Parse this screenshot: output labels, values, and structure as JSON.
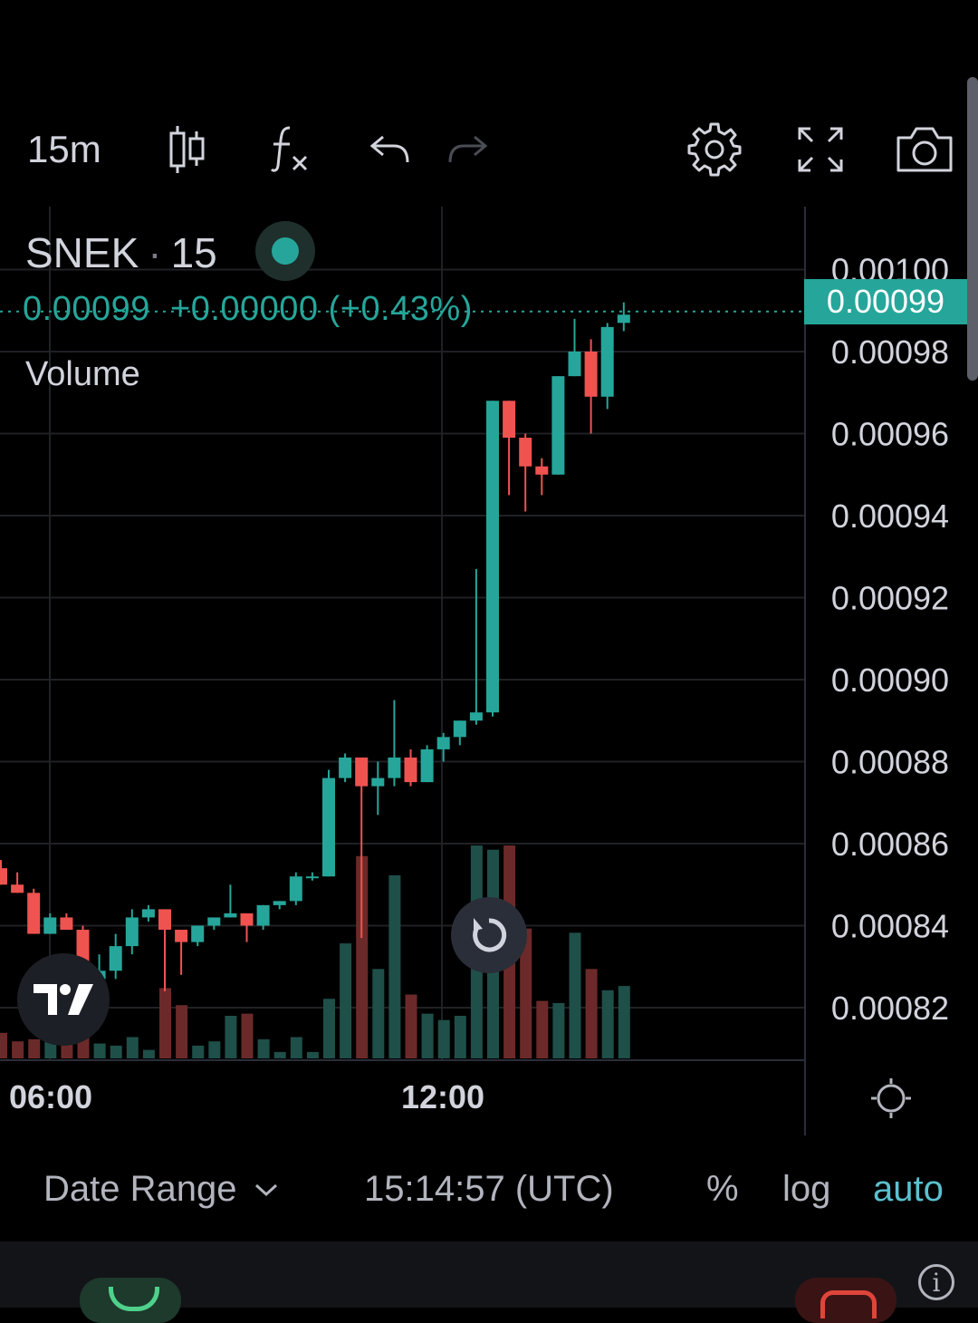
{
  "toolbar": {
    "interval": "15m",
    "icons": [
      "candles-icon",
      "indicators-icon",
      "undo-icon",
      "redo-icon",
      "settings-icon",
      "fullscreen-icon",
      "camera-icon"
    ]
  },
  "legend": {
    "symbol": "SNEK",
    "separator": "·",
    "interval": "15",
    "price": "0.00099",
    "change": "+0.00000",
    "change_pct": "(+0.43%)",
    "volume_label": "Volume"
  },
  "last_price_tag": "0.00099",
  "colors": {
    "up": "#26a69a",
    "down": "#ef5350",
    "accent": "#26a69a"
  },
  "time_axis": {
    "labels": [
      "06:00",
      "12:00"
    ]
  },
  "bottom_bar": {
    "date_range": "Date Range",
    "clock": "15:14:57 (UTC)",
    "percent": "%",
    "log": "log",
    "auto": "auto"
  },
  "chart_data": {
    "type": "candlestick",
    "ylim": [
      0.00081,
      0.00101
    ],
    "y_ticks": [
      "0.00100",
      "0.00098",
      "0.00096",
      "0.00094",
      "0.00092",
      "0.00090",
      "0.00088",
      "0.00086",
      "0.00084",
      "0.00082"
    ],
    "x_ticks": [
      "06:00",
      "12:00"
    ],
    "last_price": 0.00099,
    "candles": [
      {
        "o": 0.000854,
        "h": 0.000856,
        "l": 0.00085,
        "c": 0.00085,
        "v": 0.12
      },
      {
        "o": 0.00085,
        "h": 0.000853,
        "l": 0.000848,
        "c": 0.000848,
        "v": 0.08
      },
      {
        "o": 0.000848,
        "h": 0.000849,
        "l": 0.000838,
        "c": 0.000838,
        "v": 0.09
      },
      {
        "o": 0.000838,
        "h": 0.000843,
        "l": 0.000838,
        "c": 0.000842,
        "v": 0.1
      },
      {
        "o": 0.000842,
        "h": 0.000843,
        "l": 0.000839,
        "c": 0.000839,
        "v": 0.08
      },
      {
        "o": 0.000839,
        "h": 0.00084,
        "l": 0.000825,
        "c": 0.000827,
        "v": 0.17
      },
      {
        "o": 0.000827,
        "h": 0.000833,
        "l": 0.000826,
        "c": 0.000829,
        "v": 0.07
      },
      {
        "o": 0.000829,
        "h": 0.000838,
        "l": 0.000827,
        "c": 0.000835,
        "v": 0.06
      },
      {
        "o": 0.000835,
        "h": 0.000844,
        "l": 0.000833,
        "c": 0.000842,
        "v": 0.1
      },
      {
        "o": 0.000842,
        "h": 0.000845,
        "l": 0.000841,
        "c": 0.000844,
        "v": 0.04
      },
      {
        "o": 0.000844,
        "h": 0.000844,
        "l": 0.000824,
        "c": 0.000839,
        "v": 0.33
      },
      {
        "o": 0.000839,
        "h": 0.000839,
        "l": 0.000828,
        "c": 0.000836,
        "v": 0.25
      },
      {
        "o": 0.000836,
        "h": 0.00084,
        "l": 0.000835,
        "c": 0.00084,
        "v": 0.06
      },
      {
        "o": 0.00084,
        "h": 0.000842,
        "l": 0.000839,
        "c": 0.000842,
        "v": 0.08
      },
      {
        "o": 0.000842,
        "h": 0.00085,
        "l": 0.000842,
        "c": 0.000843,
        "v": 0.2
      },
      {
        "o": 0.000843,
        "h": 0.000843,
        "l": 0.000836,
        "c": 0.00084,
        "v": 0.21
      },
      {
        "o": 0.00084,
        "h": 0.000845,
        "l": 0.000839,
        "c": 0.000845,
        "v": 0.09
      },
      {
        "o": 0.000845,
        "h": 0.000846,
        "l": 0.000844,
        "c": 0.000846,
        "v": 0.03
      },
      {
        "o": 0.000846,
        "h": 0.000853,
        "l": 0.000845,
        "c": 0.000852,
        "v": 0.1
      },
      {
        "o": 0.000852,
        "h": 0.000853,
        "l": 0.000851,
        "c": 0.000852,
        "v": 0.03
      },
      {
        "o": 0.000852,
        "h": 0.000878,
        "l": 0.000852,
        "c": 0.000876,
        "v": 0.28
      },
      {
        "o": 0.000876,
        "h": 0.000882,
        "l": 0.000875,
        "c": 0.000881,
        "v": 0.54
      },
      {
        "o": 0.000881,
        "h": 0.000881,
        "l": 0.000837,
        "c": 0.000874,
        "v": 0.95
      },
      {
        "o": 0.000874,
        "h": 0.00088,
        "l": 0.000867,
        "c": 0.000876,
        "v": 0.42
      },
      {
        "o": 0.000876,
        "h": 0.000895,
        "l": 0.000874,
        "c": 0.000881,
        "v": 0.86
      },
      {
        "o": 0.000881,
        "h": 0.000883,
        "l": 0.000874,
        "c": 0.000875,
        "v": 0.3
      },
      {
        "o": 0.000875,
        "h": 0.000884,
        "l": 0.000875,
        "c": 0.000883,
        "v": 0.21
      },
      {
        "o": 0.000883,
        "h": 0.000887,
        "l": 0.00088,
        "c": 0.000886,
        "v": 0.18
      },
      {
        "o": 0.000886,
        "h": 0.00089,
        "l": 0.000884,
        "c": 0.00089,
        "v": 0.2
      },
      {
        "o": 0.00089,
        "h": 0.000927,
        "l": 0.000889,
        "c": 0.000892,
        "v": 1.0
      },
      {
        "o": 0.000892,
        "h": 0.000968,
        "l": 0.000891,
        "c": 0.000968,
        "v": 0.98
      },
      {
        "o": 0.000968,
        "h": 0.000968,
        "l": 0.000945,
        "c": 0.000959,
        "v": 1.0
      },
      {
        "o": 0.000959,
        "h": 0.00096,
        "l": 0.000941,
        "c": 0.000952,
        "v": 0.61
      },
      {
        "o": 0.000952,
        "h": 0.000954,
        "l": 0.000945,
        "c": 0.00095,
        "v": 0.27
      },
      {
        "o": 0.00095,
        "h": 0.000974,
        "l": 0.00095,
        "c": 0.000974,
        "v": 0.26
      },
      {
        "o": 0.000974,
        "h": 0.000988,
        "l": 0.000974,
        "c": 0.00098,
        "v": 0.59
      },
      {
        "o": 0.00098,
        "h": 0.000983,
        "l": 0.00096,
        "c": 0.000969,
        "v": 0.42
      },
      {
        "o": 0.000969,
        "h": 0.000987,
        "l": 0.000966,
        "c": 0.000986,
        "v": 0.32
      },
      {
        "o": 0.000987,
        "h": 0.000992,
        "l": 0.000985,
        "c": 0.000989,
        "v": 0.34
      }
    ]
  }
}
